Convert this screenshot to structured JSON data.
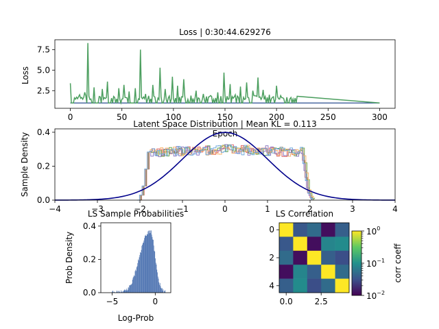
{
  "chart_data": [
    {
      "type": "line",
      "title": "Loss | 0:30:44.629276",
      "xlabel": "Epoch",
      "ylabel": "Loss",
      "xlim": [
        -15,
        315
      ],
      "ylim": [
        0.35,
        8.7
      ],
      "xticks": [
        "0",
        "50",
        "100",
        "150",
        "200",
        "250",
        "300"
      ],
      "yticks": [
        "2.5",
        "5.0",
        "7.5"
      ],
      "series": [
        {
          "color": "#4c9f5f",
          "peaks": [
            [
              0,
              3.4
            ],
            [
              9,
              2.0
            ],
            [
              14,
              2.3
            ],
            [
              17,
              8.3
            ],
            [
              23,
              2.9
            ],
            [
              31,
              2.7
            ],
            [
              36,
              3.6
            ],
            [
              47,
              2.8
            ],
            [
              52,
              3.2
            ],
            [
              57,
              2.4
            ],
            [
              63,
              2.8
            ],
            [
              68,
              7.5
            ],
            [
              73,
              2.1
            ],
            [
              80,
              3.2
            ],
            [
              87,
              5.3
            ],
            [
              92,
              2.7
            ],
            [
              99,
              4.2
            ],
            [
              104,
              3.1
            ],
            [
              110,
              3.9
            ],
            [
              117,
              1.9
            ],
            [
              122,
              2.5
            ],
            [
              129,
              2.1
            ],
            [
              136,
              1.9
            ],
            [
              143,
              2.3
            ],
            [
              149,
              4.7
            ],
            [
              155,
              3.3
            ],
            [
              160,
              2.0
            ],
            [
              165,
              3.0
            ],
            [
              171,
              3.5
            ],
            [
              177,
              2.5
            ],
            [
              182,
              4.1
            ],
            [
              187,
              2.6
            ],
            [
              193,
              2.0
            ],
            [
              200,
              3.1
            ],
            [
              204,
              1.9
            ],
            [
              210,
              1.7
            ],
            [
              218,
              1.6
            ]
          ],
          "baseline": 1.0,
          "tail_from": 220,
          "tail_to": 300
        },
        {
          "color": "#2a4d8f",
          "x": [
            0,
            300
          ],
          "y": [
            1.0,
            1.0
          ]
        }
      ]
    },
    {
      "type": "line",
      "title": "Latent Space Distribution | Mean KL = 0.113",
      "xlabel": "",
      "ylabel": "Sample Density",
      "xlim": [
        -4,
        4
      ],
      "ylim": [
        0,
        0.42
      ],
      "xticks": [
        "−4",
        "−3",
        "−2",
        "−1",
        "0",
        "1",
        "2",
        "3",
        "4"
      ],
      "yticks": [
        "0.0",
        "0.2",
        "0.4"
      ],
      "normal_curve": {
        "color": "#00008b",
        "mean": 0,
        "std": 1
      },
      "histograms": {
        "colors": [
          "#e06666",
          "#6aa84f",
          "#8e7cc3",
          "#f6b26b",
          "#6fa8dc"
        ],
        "plateau": 0.3,
        "edge_low": -1.95,
        "edge_high": 1.95
      }
    },
    {
      "type": "bar",
      "title": "LS Sample Probabilities",
      "xlabel": "Log-Prob",
      "ylabel": "Prob Density",
      "xlim": [
        -6.3,
        1.8
      ],
      "ylim": [
        0,
        0.42
      ],
      "xticks": [
        "−5",
        "0"
      ],
      "yticks": [
        "0.0",
        "0.2",
        "0.4"
      ],
      "color": "#4c72b0",
      "mode": -0.6
    },
    {
      "type": "heatmap",
      "title": "LS Correlation",
      "xticks": [
        "0.0",
        "2.5"
      ],
      "yticks": [
        "0",
        "2",
        "4"
      ],
      "colorbar_label": "corr coeff",
      "colorbar_ticks": [
        "10",
        "10",
        "10"
      ],
      "colorbar_exponents": [
        "0",
        "−1",
        "−2"
      ],
      "colorbar_scale": "log",
      "colorbar_range": [
        0.01,
        1.0
      ],
      "matrix": [
        [
          1.0,
          0.035,
          0.05,
          0.012,
          0.04
        ],
        [
          0.035,
          1.0,
          0.012,
          0.08,
          0.09
        ],
        [
          0.05,
          0.012,
          1.0,
          0.04,
          0.03
        ],
        [
          0.012,
          0.08,
          0.04,
          1.0,
          0.05
        ],
        [
          0.04,
          0.09,
          0.03,
          0.05,
          1.0
        ]
      ]
    }
  ]
}
